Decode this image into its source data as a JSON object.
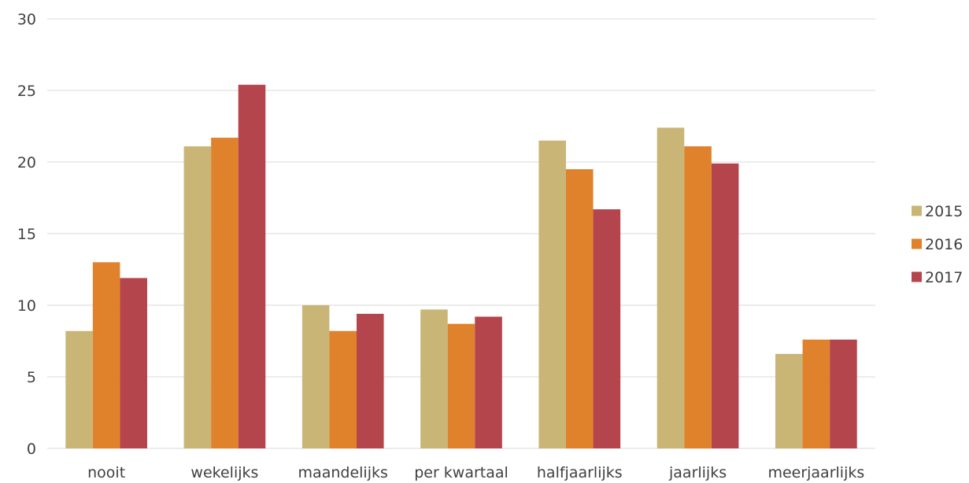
{
  "chart_data": {
    "type": "bar",
    "title": "",
    "xlabel": "",
    "ylabel": "",
    "categories": [
      "nooit",
      "wekelijks",
      "maandelijks",
      "per kwartaal",
      "halfjaarlijks",
      "jaarlijks",
      "meerjaarlijks"
    ],
    "series": [
      {
        "name": "2015",
        "color": "#c9b677",
        "values": [
          8.2,
          21.1,
          10.0,
          9.7,
          21.5,
          22.4,
          6.6
        ]
      },
      {
        "name": "2016",
        "color": "#e0822c",
        "values": [
          13.0,
          21.7,
          8.2,
          8.7,
          19.5,
          21.1,
          7.6
        ]
      },
      {
        "name": "2017",
        "color": "#b5454d",
        "values": [
          11.9,
          25.4,
          9.4,
          9.2,
          16.7,
          19.9,
          7.6
        ]
      }
    ],
    "ylim": [
      0,
      30
    ],
    "yticks": [
      "0",
      "5",
      "10",
      "15",
      "20",
      "25",
      "30"
    ],
    "grid": true,
    "gridline_color": "#d9d9d9",
    "legend_position": "right"
  }
}
